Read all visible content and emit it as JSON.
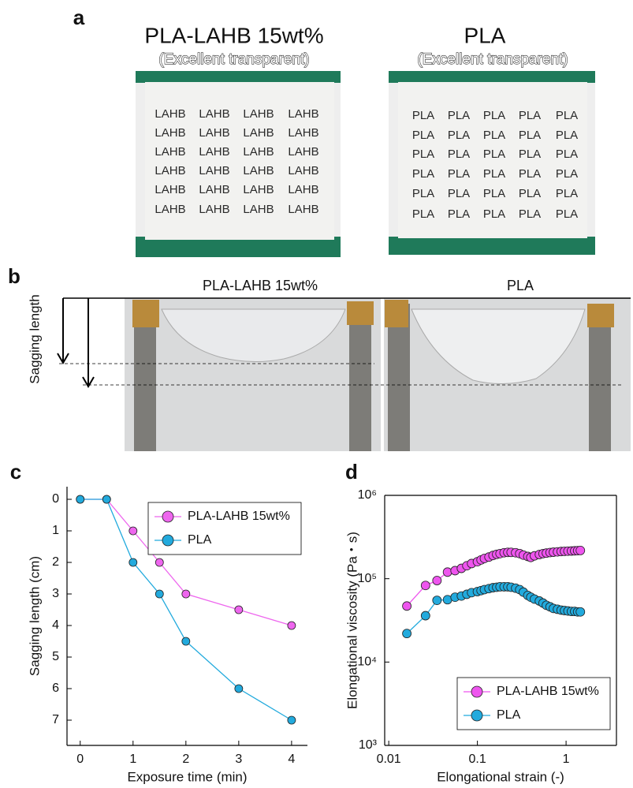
{
  "figure": {
    "a": {
      "label": "a",
      "left_title": "PLA-LAHB 15wt%",
      "left_note": "(Excellent transparent)",
      "left_word": "LAHB",
      "right_title": "PLA",
      "right_note": "(Excellent transparent)",
      "right_word": "PLA"
    },
    "b": {
      "label": "b",
      "left_title": "PLA-LAHB 15wt%",
      "right_title": "PLA",
      "axis_label": "Sagging length"
    }
  },
  "chart_data": [
    {
      "type": "line",
      "panel_label": "c",
      "xlabel": "Exposure time (min)",
      "ylabel": "Sagging length (cm)",
      "x": [
        0,
        0.5,
        1,
        1.5,
        2,
        3,
        4
      ],
      "series": [
        {
          "name": "PLA-LAHB 15wt%",
          "color": "#ee66ee",
          "values": [
            0,
            0,
            1,
            2,
            3,
            3.5,
            4
          ]
        },
        {
          "name": "PLA",
          "color": "#22aadd",
          "values": [
            0,
            0,
            2,
            3,
            4.5,
            6,
            7
          ]
        }
      ],
      "xlim": [
        -0.25,
        4.3
      ],
      "xticks": [
        0,
        1,
        2,
        3,
        4
      ],
      "ylim": [
        -0.4,
        7.8
      ],
      "yticks": [
        0,
        1,
        2,
        3,
        4,
        5,
        6,
        7
      ],
      "y_inverted": true,
      "box": false,
      "legend": "upper right"
    },
    {
      "type": "scatter",
      "panel_label": "d",
      "xlabel": "Elongational strain (-)",
      "ylabel": "Elongational viscosity (Pa・s)",
      "x": [
        0.016,
        0.026,
        0.035,
        0.046,
        0.056,
        0.066,
        0.076,
        0.086,
        0.1,
        0.11,
        0.12,
        0.135,
        0.15,
        0.165,
        0.18,
        0.2,
        0.22,
        0.24,
        0.27,
        0.3,
        0.33,
        0.37,
        0.4,
        0.44,
        0.5,
        0.55,
        0.6,
        0.66,
        0.72,
        0.8,
        0.88,
        0.96,
        1.05,
        1.15,
        1.25,
        1.35,
        1.45
      ],
      "series": [
        {
          "name": "PLA-LAHB 15wt%",
          "color": "#ee55ee",
          "values": [
            47000,
            83000,
            95000,
            120000,
            125000,
            133000,
            143000,
            152000,
            160000,
            168000,
            175000,
            182000,
            190000,
            196000,
            200000,
            205000,
            207000,
            207000,
            205000,
            200000,
            192000,
            185000,
            180000,
            188000,
            195000,
            200000,
            203000,
            206000,
            208000,
            210000,
            212000,
            213000,
            214000,
            215000,
            216000,
            217000,
            218000
          ]
        },
        {
          "name": "PLA",
          "color": "#22aadd",
          "values": [
            22000,
            36000,
            55000,
            56000,
            60000,
            62000,
            65000,
            68000,
            70000,
            72000,
            74000,
            76000,
            78000,
            79000,
            80000,
            80000,
            80000,
            79000,
            77000,
            74000,
            69000,
            63000,
            60000,
            57000,
            54000,
            51000,
            48000,
            46000,
            44000,
            43000,
            42000,
            41500,
            41000,
            40500,
            40500,
            40000,
            40000
          ]
        }
      ],
      "xlim": [
        0.009,
        3.7
      ],
      "xticks": [
        0.01,
        0.1,
        1
      ],
      "xlog": true,
      "ylim": [
        1000,
        1000000
      ],
      "ylog": true,
      "yticks": [
        {
          "value": 1000,
          "label": "10³"
        },
        {
          "value": 10000,
          "label": "10⁴"
        },
        {
          "value": 100000,
          "label": "10⁵"
        },
        {
          "value": 1000000,
          "label": "10⁶"
        }
      ],
      "box": true,
      "legend": "lower right"
    }
  ]
}
